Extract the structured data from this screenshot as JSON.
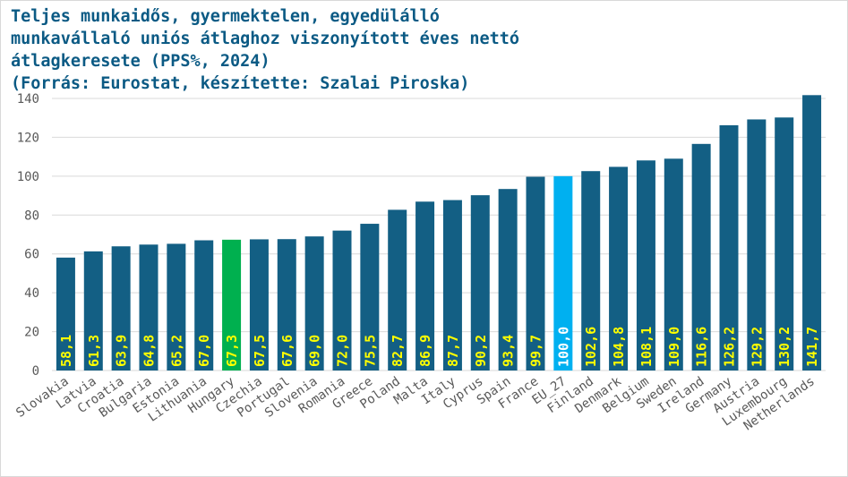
{
  "chart_data": {
    "type": "bar",
    "title_lines": [
      "Teljes munkaidős, gyermektelen, egyedülálló",
      "munkavállaló uniós átlaghoz viszonyított éves nettó",
      "átlagkeresete (PPS%, 2024)",
      "(Forrás: Eurostat, készítette: Szalai Piroska)"
    ],
    "categories": [
      "Slovakia",
      "Latvia",
      "Croatia",
      "Bulgaria",
      "Estonia",
      "Lithuania",
      "Hungary",
      "Czechia",
      "Portugal",
      "Slovenia",
      "Romania",
      "Greece",
      "Poland",
      "Malta",
      "Italy",
      "Cyprus",
      "Spain",
      "France",
      "EU_27",
      "Finland",
      "Denmark",
      "Belgium",
      "Sweden",
      "Ireland",
      "Germany",
      "Austria",
      "Luxembourg",
      "Netherlands"
    ],
    "values": [
      58.1,
      61.3,
      63.9,
      64.8,
      65.2,
      67.0,
      67.3,
      67.5,
      67.6,
      69.0,
      72.0,
      75.5,
      82.7,
      86.9,
      87.7,
      90.2,
      93.4,
      99.7,
      100.0,
      102.6,
      104.8,
      108.1,
      109.0,
      116.6,
      126.2,
      129.2,
      130.2,
      141.7
    ],
    "value_labels": [
      "58,1",
      "61,3",
      "63,9",
      "64,8",
      "65,2",
      "67,0",
      "67,3",
      "67,5",
      "67,6",
      "69,0",
      "72,0",
      "75,5",
      "82,7",
      "86,9",
      "87,7",
      "90,2",
      "93,4",
      "99,7",
      "100,0",
      "102,6",
      "104,8",
      "108,1",
      "109,0",
      "116,6",
      "126,2",
      "129,2",
      "130,2",
      "141,7"
    ],
    "ylim": [
      0,
      140
    ],
    "y_ticks": [
      0,
      20,
      40,
      60,
      80,
      100,
      120,
      140
    ],
    "grid": true,
    "legend": "none",
    "colors": {
      "default": "#135f84",
      "highlight_hungary": "#00b04f",
      "highlight_eu27": "#00b0f0",
      "label_default": "#ffff00",
      "label_eu27": "#ffffff",
      "title": "#0b5a84",
      "grid": "#d9d9d9"
    },
    "highlights": {
      "Hungary": "highlight_hungary",
      "EU_27": "highlight_eu27"
    }
  }
}
